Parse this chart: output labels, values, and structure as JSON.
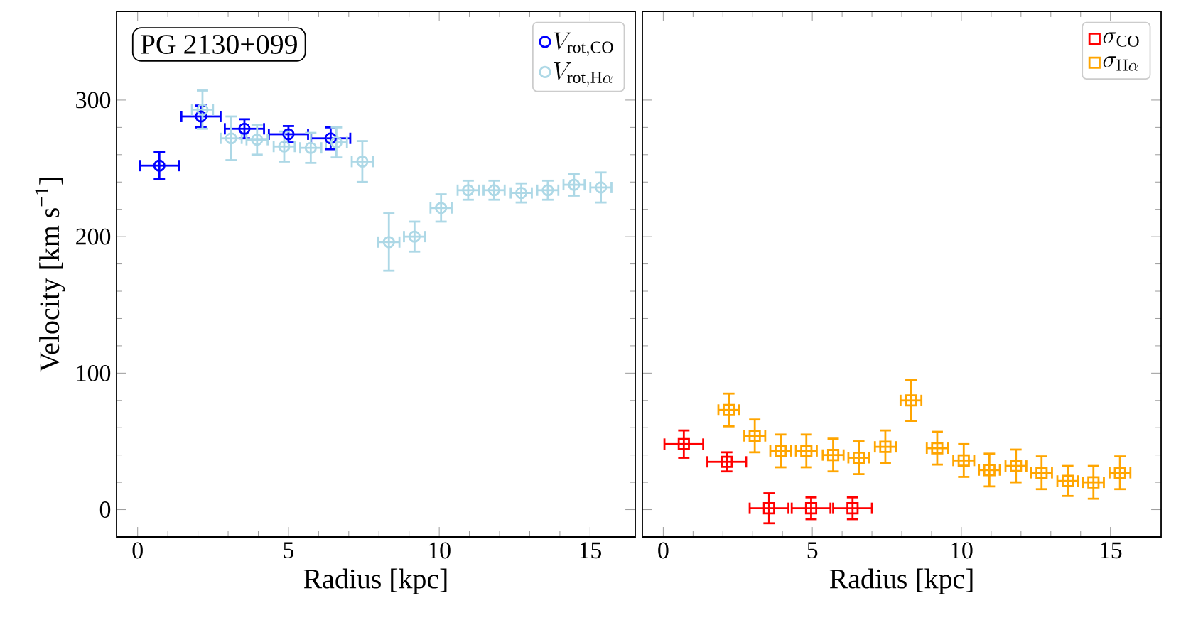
{
  "chart_data": [
    {
      "type": "scatter",
      "xlabel": "Radius [kpc]",
      "ylabel": "Velocity [km s$^{−1}$]",
      "annotations": [
        "PG 2130+099"
      ],
      "xlim": [
        -0.7,
        16.5
      ],
      "ylim": [
        -20,
        365
      ],
      "xticks": [
        0,
        5,
        10,
        15
      ],
      "yticks": [
        0,
        100,
        200,
        300
      ],
      "legend": "top right",
      "marker": "circle",
      "series": [
        {
          "name": "V_{\\mathrm{rot,CO}}",
          "color": "#0000ff",
          "x": [
            0.72,
            2.1,
            3.54,
            5.0,
            6.4
          ],
          "values": [
            252,
            288,
            279,
            275,
            272
          ],
          "errors": [
            10,
            8,
            7,
            6,
            8
          ],
          "xerrors": [
            0.65,
            0.65,
            0.65,
            0.65,
            0.65
          ]
        },
        {
          "name": "V_{\\mathrm{rot,H}\\alpha}",
          "color": "#add8e6",
          "x": [
            2.15,
            3.1,
            3.96,
            4.86,
            5.74,
            6.59,
            7.45,
            8.33,
            9.18,
            10.06,
            10.96,
            11.82,
            12.72,
            13.6,
            14.47,
            15.36
          ],
          "values": [
            293,
            272,
            271,
            266,
            265,
            269,
            255,
            196,
            200,
            221,
            234,
            234,
            232,
            234,
            238,
            236
          ],
          "errors": [
            14,
            16,
            11,
            11,
            11,
            11,
            15,
            21,
            11,
            10,
            7,
            7,
            7,
            7,
            8,
            11
          ],
          "xerrors": [
            0.35,
            0.35,
            0.35,
            0.35,
            0.35,
            0.35,
            0.35,
            0.35,
            0.35,
            0.35,
            0.35,
            0.35,
            0.35,
            0.35,
            0.35,
            0.35
          ]
        }
      ]
    },
    {
      "type": "scatter",
      "xlabel": "Radius [kpc]",
      "xlim": [
        -0.7,
        16.7
      ],
      "ylim": [
        -20,
        365
      ],
      "xticks": [
        0,
        5,
        10,
        15
      ],
      "yticks": [
        0,
        100,
        200,
        300
      ],
      "tick_labels": "x",
      "legend": "top right",
      "marker": "square",
      "series": [
        {
          "name": "\\sigma_{\\mathrm{CO}}",
          "color": "#ff0000",
          "x": [
            0.69,
            2.13,
            3.55,
            4.96,
            6.35
          ],
          "values": [
            48,
            35,
            1,
            1,
            1
          ],
          "errors": [
            10,
            7,
            11,
            8,
            8
          ],
          "xerrors": [
            0.65,
            0.65,
            0.65,
            0.65,
            0.65
          ]
        },
        {
          "name": "\\sigma_{\\mathrm{H}\\alpha}",
          "color": "#ffa500",
          "x": [
            2.2,
            3.07,
            3.94,
            4.8,
            5.7,
            6.56,
            7.45,
            8.31,
            9.19,
            10.08,
            10.94,
            11.83,
            12.69,
            13.57,
            14.43,
            15.32
          ],
          "values": [
            73,
            54,
            43,
            43,
            40,
            38,
            46,
            80,
            45,
            36,
            29,
            32,
            27,
            21,
            20,
            27
          ],
          "errors": [
            12,
            12,
            12,
            12,
            12,
            12,
            12,
            15,
            12,
            12,
            12,
            12,
            12,
            11,
            12,
            12
          ],
          "xerrors": [
            0.35,
            0.35,
            0.35,
            0.35,
            0.35,
            0.35,
            0.35,
            0.35,
            0.35,
            0.35,
            0.35,
            0.35,
            0.35,
            0.35,
            0.35,
            0.35
          ]
        }
      ]
    }
  ]
}
